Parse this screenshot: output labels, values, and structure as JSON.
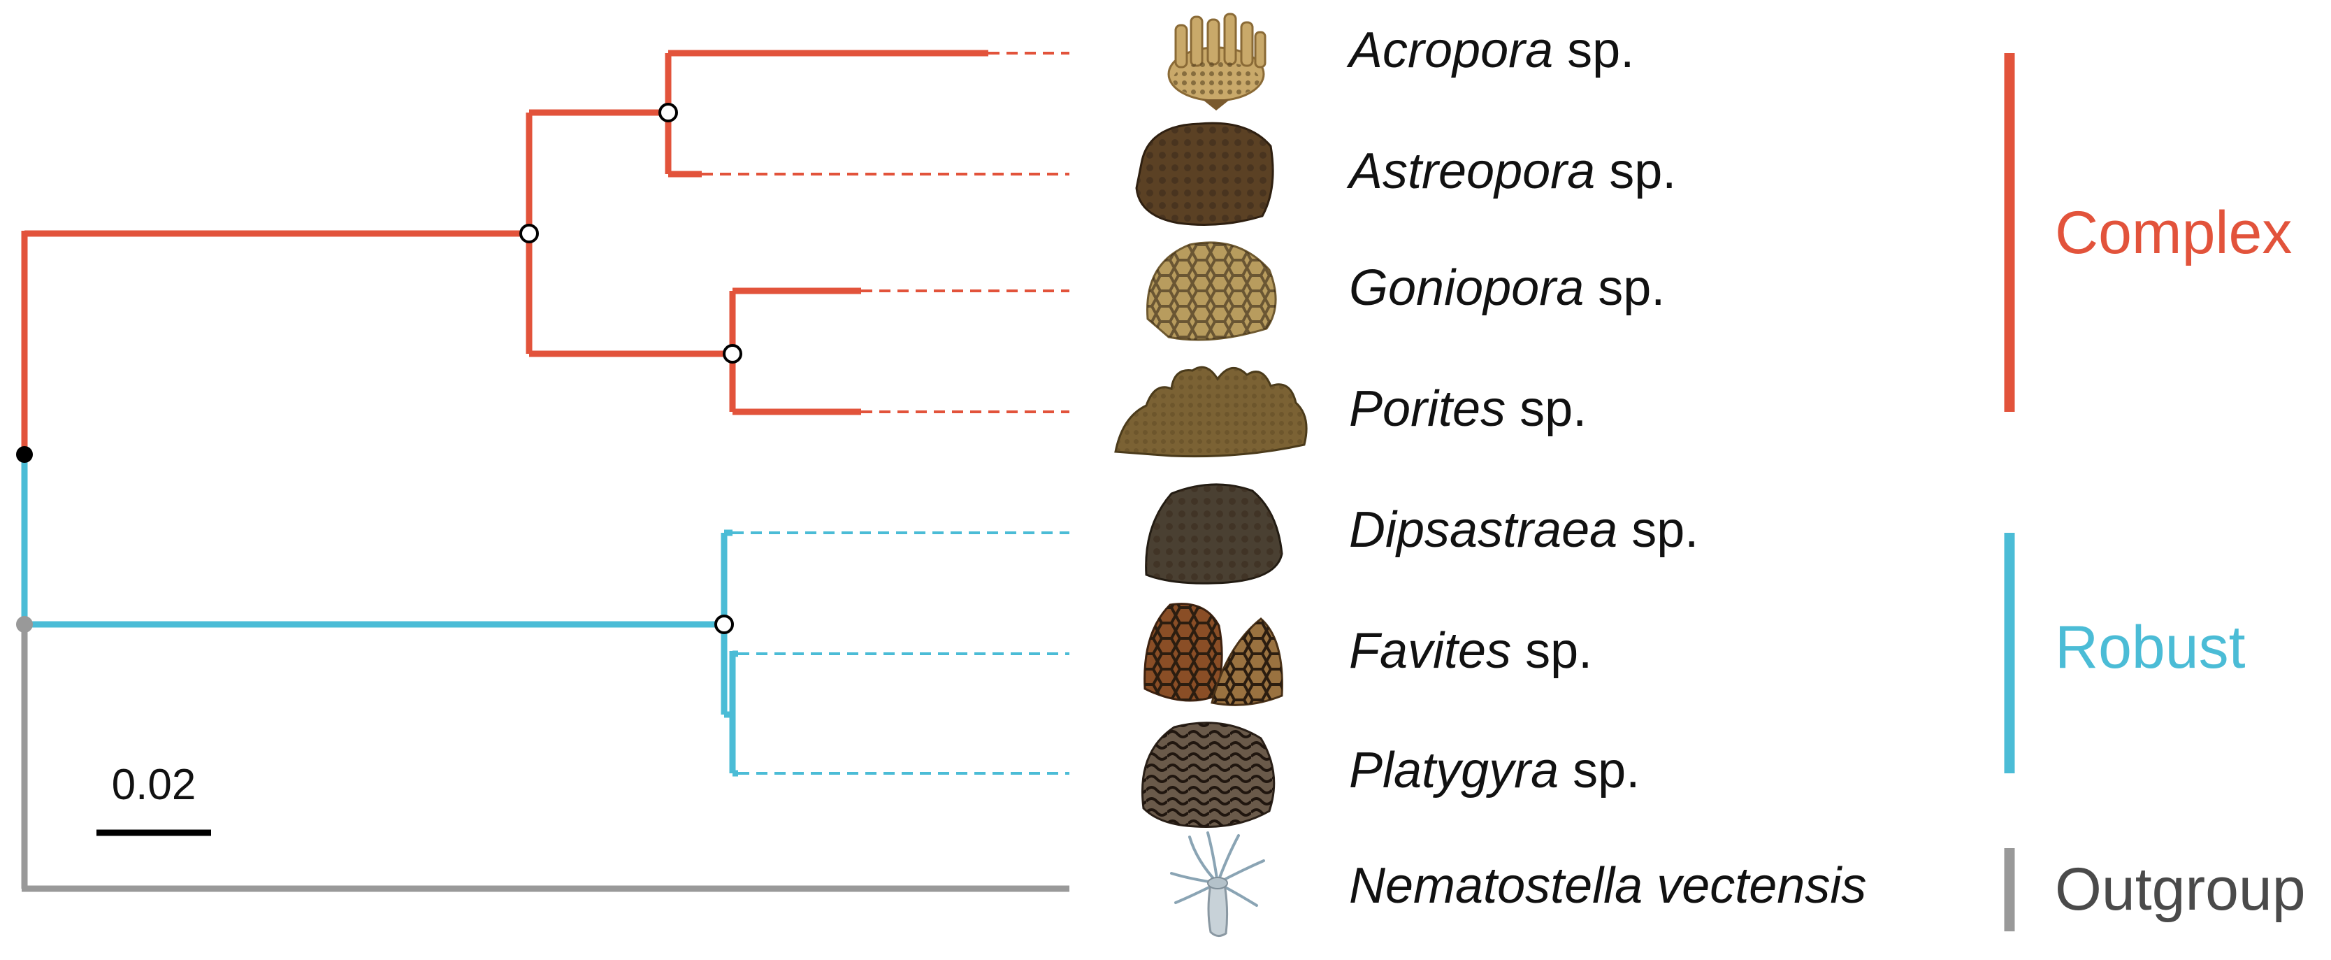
{
  "colors": {
    "complex": "#e2533b",
    "robust": "#4bbcd6",
    "outgroup": "#999999",
    "outgroup_text": "#4a4a4a",
    "node_fill_open": "#ffffff",
    "node_root": "#000000",
    "node_outgroup": "#999999"
  },
  "taxa": [
    {
      "genus": "Acropora",
      "suffix": " sp.",
      "clade": "complex",
      "icon": "branching-coral-icon"
    },
    {
      "genus": "Astreopora",
      "suffix": " sp.",
      "clade": "complex",
      "icon": "massive-coral-icon"
    },
    {
      "genus": "Goniopora",
      "suffix": " sp.",
      "clade": "complex",
      "icon": "dome-coral-icon"
    },
    {
      "genus": "Porites",
      "suffix": " sp.",
      "clade": "complex",
      "icon": "finger-coral-icon"
    },
    {
      "genus": "Dipsastraea",
      "suffix": " sp.",
      "clade": "robust",
      "icon": "mound-coral-icon"
    },
    {
      "genus": "Favites",
      "suffix": " sp.",
      "clade": "robust",
      "icon": "honeycomb-coral-icon"
    },
    {
      "genus": "Platygyra",
      "suffix": " sp.",
      "clade": "robust",
      "icon": "brain-coral-icon"
    },
    {
      "genus": "Nematostella vectensis",
      "suffix": "",
      "clade": "outgroup",
      "icon": "sea-anemone-icon"
    }
  ],
  "clades": [
    {
      "key": "complex",
      "label": "Complex"
    },
    {
      "key": "robust",
      "label": "Robust"
    },
    {
      "key": "outgroup",
      "label": "Outgroup"
    }
  ],
  "scale_bar": {
    "label": "0.02",
    "value": 0.02
  }
}
